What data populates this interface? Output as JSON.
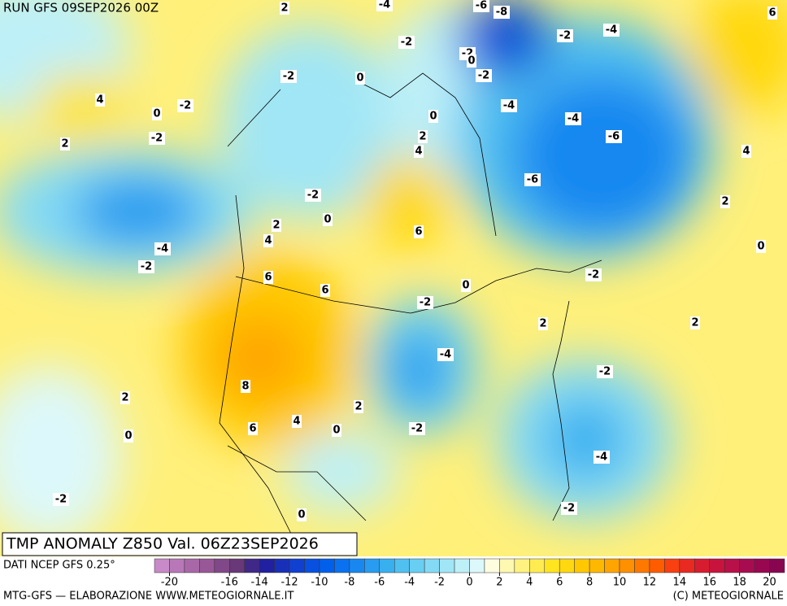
{
  "header": {
    "run": "RUN GFS 09SEP2026 00Z"
  },
  "title": "TMP ANOMALY Z850 Val. 06Z23SEP2026",
  "source": "DATI NCEP GFS 0.25°",
  "footer_left": "MTG-GFS — ELABORAZIONE WWW.METEOGIORNALE.IT",
  "footer_right": "(C) METEOGIORNALE",
  "colorbar": {
    "ticks": [
      -20,
      -16,
      -14,
      -12,
      -10,
      -8,
      -6,
      -4,
      -2,
      0,
      2,
      4,
      6,
      8,
      10,
      12,
      14,
      16,
      18,
      20
    ],
    "colors": [
      "#c88ac8",
      "#b878b8",
      "#a868a8",
      "#985898",
      "#804888",
      "#683878",
      "#402888",
      "#2020a0",
      "#1830b8",
      "#1040d0",
      "#0850e0",
      "#0060ec",
      "#0a72f0",
      "#1888f0",
      "#289cf0",
      "#38b0f0",
      "#50c0f0",
      "#68cef2",
      "#84daf4",
      "#a0e6f6",
      "#bef0f8",
      "#dcf8fa",
      "#fffce0",
      "#fff8b0",
      "#fff280",
      "#ffec50",
      "#ffe420",
      "#ffd810",
      "#ffc800",
      "#ffb800",
      "#ffa400",
      "#ff9000",
      "#ff7800",
      "#ff5c00",
      "#f84010",
      "#e82a20",
      "#d81c30",
      "#c8143c",
      "#b81048",
      "#a80c50",
      "#980850",
      "#880650"
    ]
  },
  "contour_labels": [
    "2",
    "-4",
    "-6",
    "-8",
    "6",
    "-2",
    "-2",
    "-4",
    "-2",
    "0",
    "-2",
    "0",
    "-2",
    "4",
    "-2",
    "0",
    "0",
    "-4",
    "-4",
    "2",
    "-2",
    "2",
    "4",
    "-6",
    "4",
    "-6",
    "-2",
    "2",
    "0",
    "2",
    "4",
    "6",
    "-4",
    "-2",
    "0",
    "-2",
    "6",
    "6",
    "0",
    "-2",
    "2",
    "2",
    "-4",
    "-2",
    "8",
    "2",
    "2",
    "6",
    "4",
    "0",
    "-2",
    "0",
    "-4",
    "-2",
    "-2",
    "0"
  ]
}
